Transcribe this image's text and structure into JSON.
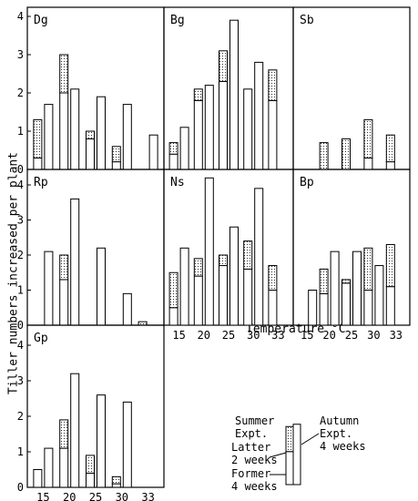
{
  "figure": {
    "y_axis_label": "Tiller numbers increased per plant",
    "x_axis_label": "Temperature °C",
    "legend": {
      "summer_label": "Summer\nExpt.",
      "autumn_label": "Autumn\nExpt.\n4 weeks",
      "latter_label": "Latter\n2 weeks",
      "former_label": "Former\n4 weeks"
    }
  },
  "chart_data": [
    {
      "type": "bar",
      "title": "Dg",
      "x": [
        15,
        20,
        25,
        30,
        33
      ],
      "ylim": [
        0,
        4.2
      ],
      "yticks": [
        0,
        1,
        2,
        3,
        4
      ],
      "xticks": [],
      "series": [
        {
          "name": "Summer Expt. Former 4 weeks",
          "values": [
            0.3,
            2.0,
            0.8,
            0.2,
            null
          ]
        },
        {
          "name": "Summer Expt. Latter 2 weeks",
          "values": [
            1.0,
            1.0,
            0.2,
            0.4,
            null
          ]
        },
        {
          "name": "Autumn Expt. 4 weeks",
          "values": [
            1.7,
            2.1,
            1.9,
            1.7,
            0.9
          ]
        }
      ]
    },
    {
      "type": "bar",
      "title": "Bg",
      "x": [
        15,
        20,
        25,
        30,
        33
      ],
      "ylim": [
        0,
        4.2
      ],
      "yticks": [],
      "xticks": [],
      "series": [
        {
          "name": "Summer Expt. Former 4 weeks",
          "values": [
            0.4,
            1.8,
            2.3,
            2.1,
            1.8
          ]
        },
        {
          "name": "Summer Expt. Latter 2 weeks",
          "values": [
            0.3,
            0.3,
            0.8,
            0.0,
            0.8
          ]
        },
        {
          "name": "Autumn Expt. 4 weeks",
          "values": [
            1.1,
            2.2,
            3.9,
            2.8,
            null
          ]
        }
      ]
    },
    {
      "type": "bar",
      "title": "Sb",
      "x": [
        15,
        20,
        25,
        30,
        33
      ],
      "ylim": [
        0,
        4.2
      ],
      "yticks": [],
      "xticks": [],
      "series": [
        {
          "name": "Summer Expt. Former 4 weeks",
          "values": [
            null,
            0.0,
            0.0,
            0.3,
            0.2
          ]
        },
        {
          "name": "Summer Expt. Latter 2 weeks",
          "values": [
            null,
            0.7,
            0.8,
            1.0,
            0.7
          ]
        },
        {
          "name": "Autumn Expt. 4 weeks",
          "values": [
            null,
            null,
            null,
            null,
            null
          ]
        }
      ]
    },
    {
      "type": "bar",
      "title": "Rp",
      "x": [
        15,
        20,
        25,
        30,
        33
      ],
      "ylim": [
        0,
        4.3
      ],
      "yticks": [
        0,
        1,
        2,
        3,
        4
      ],
      "xticks": [],
      "series": [
        {
          "name": "Summer Expt. Former 4 weeks",
          "values": [
            null,
            1.3,
            null,
            null,
            0.0
          ]
        },
        {
          "name": "Summer Expt. Latter 2 weeks",
          "values": [
            null,
            0.7,
            null,
            null,
            0.1
          ]
        },
        {
          "name": "Autumn Expt. 4 weeks",
          "values": [
            2.1,
            3.6,
            2.2,
            0.9,
            null
          ]
        }
      ]
    },
    {
      "type": "bar",
      "title": "Ns",
      "x": [
        15,
        20,
        25,
        30,
        33
      ],
      "ylim": [
        0,
        4.3
      ],
      "yticks": [],
      "xticks": [
        "15",
        "20",
        "25",
        "30",
        "33"
      ],
      "series": [
        {
          "name": "Summer Expt. Former 4 weeks",
          "values": [
            0.5,
            1.4,
            1.7,
            1.6,
            1.0
          ]
        },
        {
          "name": "Summer Expt. Latter 2 weeks",
          "values": [
            1.0,
            0.5,
            0.3,
            0.8,
            0.7
          ]
        },
        {
          "name": "Autumn Expt. 4 weeks",
          "values": [
            2.2,
            4.2,
            2.8,
            3.9,
            null
          ]
        }
      ]
    },
    {
      "type": "bar",
      "title": "Bp",
      "x": [
        15,
        20,
        25,
        30,
        33
      ],
      "ylim": [
        0,
        4.3
      ],
      "yticks": [],
      "xticks": [
        "15",
        "20",
        "25",
        "30",
        "33"
      ],
      "series": [
        {
          "name": "Summer Expt. Former 4 weeks",
          "values": [
            null,
            0.9,
            1.2,
            1.0,
            1.1
          ]
        },
        {
          "name": "Summer Expt. Latter 2 weeks",
          "values": [
            null,
            0.7,
            0.1,
            1.2,
            1.2
          ]
        },
        {
          "name": "Autumn Expt. 4 weeks",
          "values": [
            1.0,
            2.1,
            2.1,
            1.7,
            null
          ]
        }
      ]
    },
    {
      "type": "bar",
      "title": "Gp",
      "x": [
        15,
        20,
        25,
        30,
        33
      ],
      "ylim": [
        0,
        4.3
      ],
      "yticks": [
        0,
        1,
        2,
        3,
        4
      ],
      "xticks": [
        "15",
        "20",
        "25",
        "30",
        "33"
      ],
      "series": [
        {
          "name": "Summer Expt. Former 4 weeks",
          "values": [
            0.5,
            1.1,
            0.4,
            0.1,
            null
          ]
        },
        {
          "name": "Summer Expt. Latter 2 weeks",
          "values": [
            0.0,
            0.8,
            0.5,
            0.2,
            null
          ]
        },
        {
          "name": "Autumn Expt. 4 weeks",
          "values": [
            1.1,
            3.2,
            2.6,
            2.4,
            null
          ]
        }
      ]
    }
  ]
}
